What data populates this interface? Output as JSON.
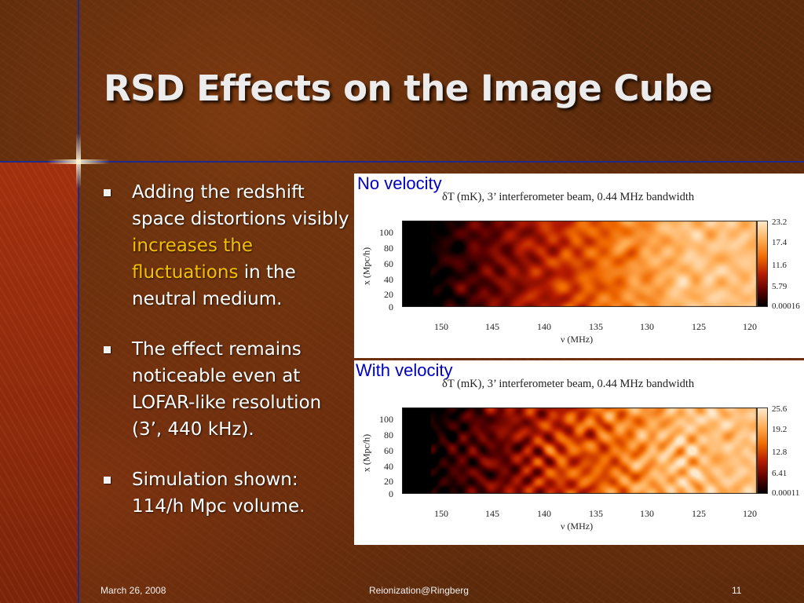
{
  "slide": {
    "title": "RSD Effects on the Image Cube",
    "bullets": [
      {
        "pre": "Adding the redshift space distortions visibly ",
        "highlight": "increases the fluctuations",
        "post": " in the neutral medium."
      },
      {
        "text": "The effect remains noticeable even at LOFAR-like resolution (3’, 440 kHz)."
      },
      {
        "text": "Simulation shown: 114/h Mpc volume."
      }
    ]
  },
  "colors": {
    "title": "#ececec",
    "highlight": "#f4c000",
    "panel_label": "#0000c0",
    "accent_lines": "#1e2a8a"
  },
  "panels": {
    "top": {
      "label": "No velocity",
      "plot_title": "δT (mK), 3’ interferometer beam, 0.44 MHz bandwidth",
      "ylabel": "x (Mpc/h)",
      "xlabel": "ν (MHz)",
      "xticks": [
        "150",
        "145",
        "140",
        "135",
        "130",
        "125",
        "120"
      ],
      "yticks": [
        "100",
        "80",
        "60",
        "40",
        "20",
        "0"
      ],
      "colorbar_ticks": [
        "23.2",
        "17.4",
        "11.6",
        "5.79",
        "0.00016"
      ]
    },
    "bottom": {
      "label": "With velocity",
      "plot_title": "δT (mK), 3’ interferometer beam, 0.44 MHz bandwidth",
      "ylabel": "x (Mpc/h)",
      "xlabel": "ν (MHz)",
      "xticks": [
        "150",
        "145",
        "140",
        "135",
        "130",
        "125",
        "120"
      ],
      "yticks": [
        "100",
        "80",
        "60",
        "40",
        "20",
        "0"
      ],
      "colorbar_ticks": [
        "25.6",
        "19.2",
        "12.8",
        "6.41",
        "0.00011"
      ]
    }
  },
  "footer": {
    "date": "March 26, 2008",
    "center": "Reionization@Ringberg",
    "page": "11"
  }
}
